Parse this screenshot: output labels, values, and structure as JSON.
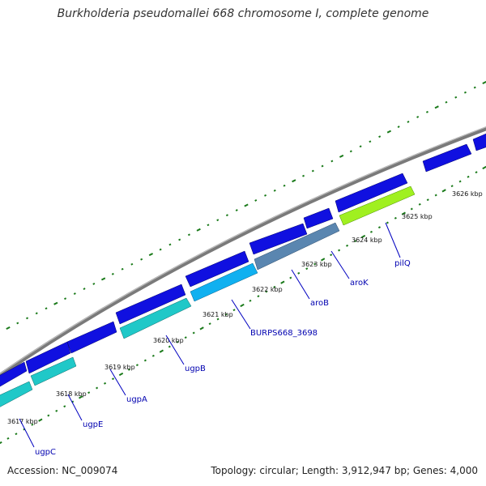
{
  "title": "Burkholderia pseudomallei 668 chromosome I, complete genome",
  "footer": {
    "accession": "Accession: NC_009074",
    "stats": "Topology: circular; Length: 3,912,947 bp; Genes: 4,000"
  },
  "ticks": [
    "3617 kbp",
    "3618 kbp",
    "3619 kbp",
    "3620 kbp",
    "3621 kbp",
    "3622 kbp",
    "3623 kbp",
    "3624 kbp",
    "3625 kbp",
    "3626 kbp"
  ],
  "genes": [
    "ugpC",
    "ugpE",
    "ugpA",
    "ugpB",
    "BURPS668_3698",
    "aroB",
    "aroK",
    "pilQ"
  ],
  "colors": {
    "backbone": "#8a8a8a",
    "forward_gene": "#1010e0",
    "teal_gene": "#20c8c8",
    "sky_gene": "#10b0f0",
    "steel_gene": "#5a86b0",
    "lime_gene": "#a0f020",
    "tick_green": "#1a7a1a",
    "label_blue": "#0000b0"
  }
}
